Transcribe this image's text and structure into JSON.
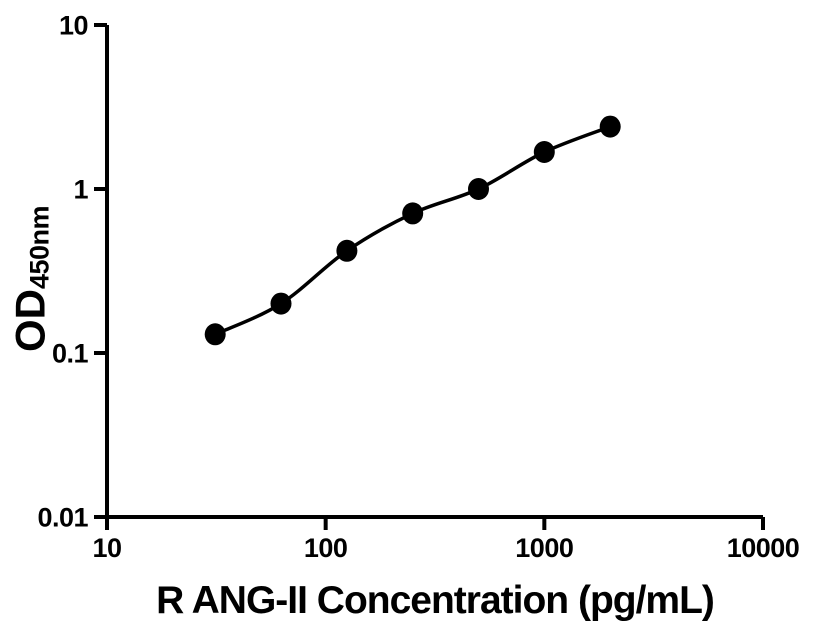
{
  "figure": {
    "background": "#ffffff",
    "ink": "#000000"
  },
  "chart_data": {
    "type": "scatter",
    "title": "",
    "xlabel": "R ANG-II Concentration (pg/mL)",
    "ylabel": "OD450nm",
    "ylabel_main": "OD",
    "ylabel_sub": "450nm",
    "x_scale": "log10",
    "y_scale": "log10",
    "xlim": [
      10,
      10000
    ],
    "ylim": [
      0.01,
      10
    ],
    "x_ticks": [
      10,
      100,
      1000,
      10000
    ],
    "x_tick_labels": [
      "10",
      "100",
      "1000",
      "10000"
    ],
    "y_ticks": [
      0.01,
      0.1,
      1,
      10
    ],
    "y_tick_labels": [
      "0.01",
      "0.1",
      "1",
      "10"
    ],
    "grid": false,
    "legend": null,
    "series": [
      {
        "marker": "filled-circle",
        "line": "smooth",
        "color": "#000000",
        "x": [
          31.25,
          62.5,
          125,
          250,
          500,
          1000,
          2000
        ],
        "y": [
          0.13,
          0.2,
          0.42,
          0.71,
          1.0,
          1.68,
          2.4
        ]
      }
    ]
  }
}
